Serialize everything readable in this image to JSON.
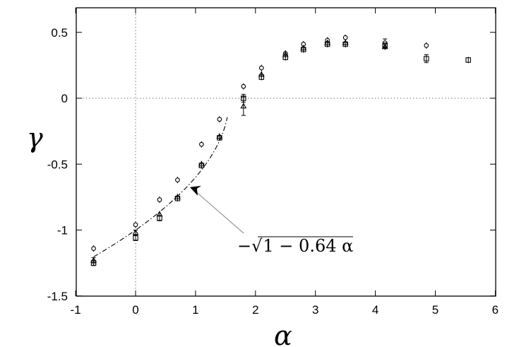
{
  "chart_data": {
    "type": "scatter",
    "title": "",
    "xlabel": "α",
    "ylabel": "γ",
    "xlim": [
      -1,
      6
    ],
    "ylim": [
      -1.5,
      0.7
    ],
    "xticks": [
      "-1",
      "0",
      "1",
      "2",
      "3",
      "4",
      "5",
      "6"
    ],
    "yticks": [
      "-1.5",
      "-1",
      "-0.5",
      "0",
      "0.5"
    ],
    "xtick_values": [
      -1,
      0,
      1,
      2,
      3,
      4,
      5,
      6
    ],
    "ytick_values": [
      -1.5,
      -1,
      -0.5,
      0,
      0.5
    ],
    "grid": false,
    "reference_lines": {
      "x": 0,
      "y": 0,
      "style": "dotted"
    },
    "series": [
      {
        "marker": "circle",
        "points": [
          {
            "x": -0.7,
            "y": -1.14,
            "err": 0.01
          },
          {
            "x": 0.0,
            "y": -0.96,
            "err": 0.01
          },
          {
            "x": 0.4,
            "y": -0.77,
            "err": 0.01
          },
          {
            "x": 0.7,
            "y": -0.62,
            "err": 0.01
          },
          {
            "x": 1.1,
            "y": -0.35,
            "err": 0.01
          },
          {
            "x": 1.4,
            "y": -0.16,
            "err": 0.01
          },
          {
            "x": 1.8,
            "y": 0.09,
            "err": 0.01
          },
          {
            "x": 2.1,
            "y": 0.23,
            "err": 0.01
          },
          {
            "x": 2.5,
            "y": 0.34,
            "err": 0.01
          },
          {
            "x": 2.8,
            "y": 0.41,
            "err": 0.01
          },
          {
            "x": 3.2,
            "y": 0.44,
            "err": 0.01
          },
          {
            "x": 3.5,
            "y": 0.46,
            "err": 0.01
          },
          {
            "x": 4.16,
            "y": 0.42,
            "err": 0.03
          },
          {
            "x": 4.85,
            "y": 0.4,
            "err": 0.01
          }
        ]
      },
      {
        "marker": "square",
        "points": [
          {
            "x": -0.7,
            "y": -1.25,
            "err": 0.02
          },
          {
            "x": 0.0,
            "y": -1.06,
            "err": 0.02
          },
          {
            "x": 0.4,
            "y": -0.91,
            "err": 0.02
          },
          {
            "x": 0.7,
            "y": -0.76,
            "err": 0.01
          },
          {
            "x": 1.1,
            "y": -0.51,
            "err": 0.01
          },
          {
            "x": 1.4,
            "y": -0.3,
            "err": 0.01
          },
          {
            "x": 1.8,
            "y": 0.0,
            "err": 0.03
          },
          {
            "x": 2.1,
            "y": 0.16,
            "err": 0.01
          },
          {
            "x": 2.5,
            "y": 0.31,
            "err": 0.01
          },
          {
            "x": 2.8,
            "y": 0.37,
            "err": 0.01
          },
          {
            "x": 3.2,
            "y": 0.41,
            "err": 0.01
          },
          {
            "x": 3.5,
            "y": 0.41,
            "err": 0.01
          },
          {
            "x": 4.16,
            "y": 0.4,
            "err": 0.02
          },
          {
            "x": 4.85,
            "y": 0.3,
            "err": 0.03
          },
          {
            "x": 5.55,
            "y": 0.29,
            "err": 0.01
          }
        ]
      },
      {
        "marker": "triangle",
        "points": [
          {
            "x": -0.7,
            "y": -1.23,
            "err": 0.02
          },
          {
            "x": 0.0,
            "y": -1.02,
            "err": 0.02
          },
          {
            "x": 0.4,
            "y": -0.88,
            "err": 0.01
          },
          {
            "x": 0.7,
            "y": -0.75,
            "err": 0.01
          },
          {
            "x": 1.1,
            "y": -0.5,
            "err": 0.01
          },
          {
            "x": 1.4,
            "y": -0.29,
            "err": 0.01
          },
          {
            "x": 1.8,
            "y": -0.06,
            "err": 0.07
          },
          {
            "x": 2.1,
            "y": 0.18,
            "err": 0.01
          },
          {
            "x": 2.5,
            "y": 0.33,
            "err": 0.01
          },
          {
            "x": 2.8,
            "y": 0.38,
            "err": 0.01
          },
          {
            "x": 3.2,
            "y": 0.42,
            "err": 0.01
          },
          {
            "x": 3.5,
            "y": 0.42,
            "err": 0.01
          },
          {
            "x": 4.16,
            "y": 0.39,
            "err": 0.01
          }
        ]
      }
    ],
    "curve": {
      "formula": "-sqrt(1 - 0.64*alpha)",
      "coef": 0.64,
      "x_range": [
        -0.7,
        1.53
      ],
      "style": "dash-dot"
    },
    "annotation": {
      "text_prefix": "−",
      "sqrt_symbol": "√",
      "text_body": "1 − 0.64 α",
      "arrow_to": {
        "x": 0.93,
        "y": -0.68
      }
    }
  }
}
